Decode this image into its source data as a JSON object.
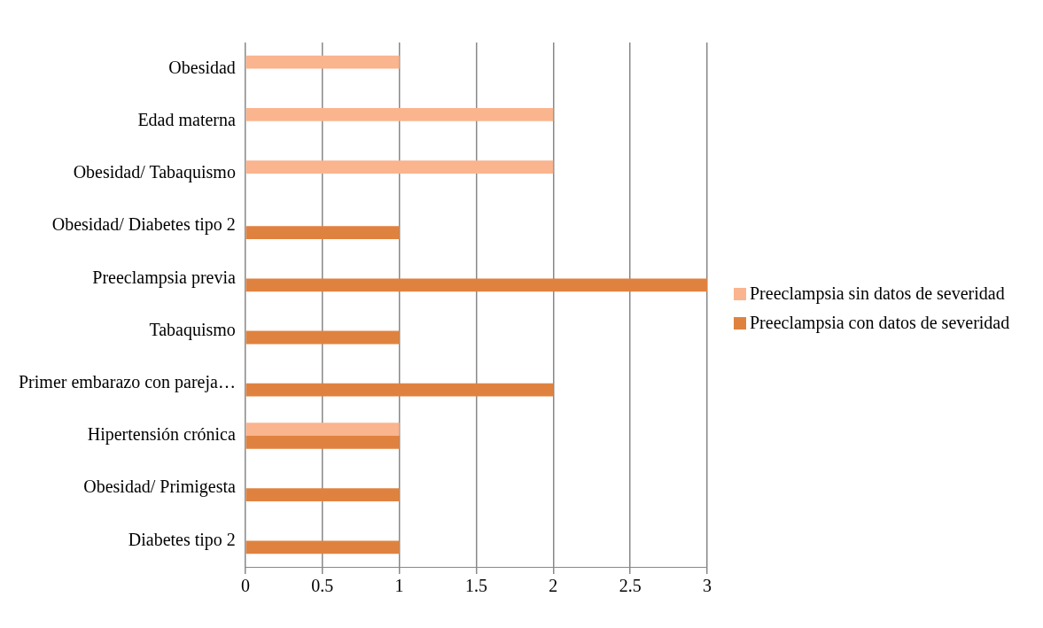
{
  "chart_data": {
    "type": "bar",
    "orientation": "horizontal",
    "categories": [
      "Obesidad",
      "Edad materna",
      "Obesidad/ Tabaquismo",
      "Obesidad/ Diabetes tipo 2",
      "Preeclampsia previa",
      "Tabaquismo",
      "Primer embarazo con pareja…",
      "Hipertensión crónica",
      "Obesidad/ Primigesta",
      "Diabetes tipo 2"
    ],
    "series": [
      {
        "name": "Preeclampsia sin datos de severidad",
        "color": "#fab48e",
        "values": [
          1,
          2,
          2,
          null,
          null,
          null,
          null,
          1,
          null,
          null
        ]
      },
      {
        "name": "Preeclampsia con datos de severidad",
        "color": "#e0823f",
        "values": [
          null,
          null,
          null,
          1,
          3,
          1,
          2,
          1,
          1,
          1
        ]
      }
    ],
    "xlim": [
      0,
      3
    ],
    "xticks": [
      0,
      0.5,
      1,
      1.5,
      2,
      2.5,
      3
    ],
    "grid": "x",
    "legend": "right"
  }
}
